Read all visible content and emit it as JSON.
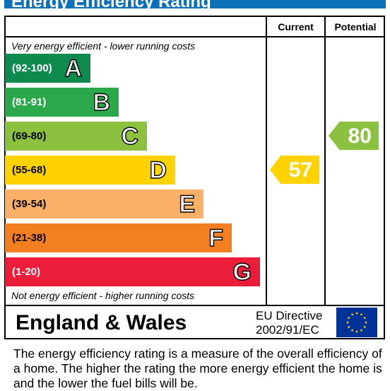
{
  "header": {
    "title": "Energy Efficiency Rating"
  },
  "columns": {
    "current": "Current",
    "potential": "Potential"
  },
  "notes": {
    "top": "Very energy efficient - lower running costs",
    "bottom": "Not energy efficient - higher running costs"
  },
  "footer": {
    "region": "England & Wales",
    "directive_line1": "EU Directive",
    "directive_line2": "2002/91/EC",
    "flag_icon": "eu-flag-icon"
  },
  "description": "The energy efficiency rating is a measure of the overall efficiency of a home.  The higher the rating the more energy efficient the home is and the lower the fuel bills will be.",
  "colors": {
    "title_bar": "#0b72b9",
    "A": "#0f8a4f",
    "B": "#2ba84a",
    "C": "#8cc13f",
    "D": "#ffd200",
    "E": "#fbb068",
    "F": "#f47f20",
    "G": "#ec1c3b",
    "current_arrow": "#ffd200",
    "potential_arrow": "#8cc13f"
  },
  "chart_data": {
    "type": "bar",
    "title": "Energy Efficiency Rating",
    "categories": [
      "A",
      "B",
      "C",
      "D",
      "E",
      "F",
      "G"
    ],
    "ranges": [
      "(92-100)",
      "(81-91)",
      "(69-80)",
      "(55-68)",
      "(39-54)",
      "(21-38)",
      "(1-20)"
    ],
    "current": {
      "label": "Current",
      "value": 57,
      "band": "D"
    },
    "potential": {
      "label": "Potential",
      "value": 80,
      "band": "C"
    }
  }
}
